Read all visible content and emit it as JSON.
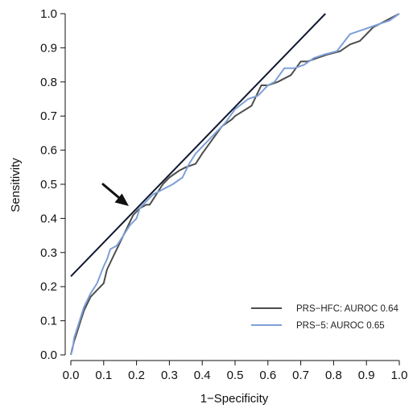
{
  "chart_data": {
    "type": "line",
    "xlabel": "1−Specificity",
    "ylabel": "Sensitivity",
    "xlim": [
      0.0,
      1.0
    ],
    "ylim": [
      0.0,
      1.0
    ],
    "x_ticks": [
      "0.0",
      "0.1",
      "0.2",
      "0.3",
      "0.4",
      "0.5",
      "0.6",
      "0.7",
      "0.8",
      "0.9",
      "1.0"
    ],
    "y_ticks": [
      "0.0",
      "0.1",
      "0.2",
      "0.3",
      "0.4",
      "0.5",
      "0.6",
      "0.7",
      "0.8",
      "0.9",
      "1.0"
    ],
    "grid": false,
    "legend_position": "bottom-right",
    "series": [
      {
        "name": "PRS−HFC: AUROC 0.64",
        "color": "#4d4d4d",
        "points": [
          [
            0.0,
            0.0
          ],
          [
            0.005,
            0.02
          ],
          [
            0.01,
            0.04
          ],
          [
            0.02,
            0.07
          ],
          [
            0.03,
            0.1
          ],
          [
            0.04,
            0.13
          ],
          [
            0.05,
            0.15
          ],
          [
            0.06,
            0.17
          ],
          [
            0.08,
            0.19
          ],
          [
            0.1,
            0.21
          ],
          [
            0.11,
            0.25
          ],
          [
            0.13,
            0.29
          ],
          [
            0.15,
            0.33
          ],
          [
            0.17,
            0.37
          ],
          [
            0.19,
            0.41
          ],
          [
            0.21,
            0.43
          ],
          [
            0.23,
            0.44
          ],
          [
            0.24,
            0.44
          ],
          [
            0.26,
            0.47
          ],
          [
            0.28,
            0.5
          ],
          [
            0.3,
            0.52
          ],
          [
            0.33,
            0.54
          ],
          [
            0.35,
            0.55
          ],
          [
            0.38,
            0.56
          ],
          [
            0.4,
            0.59
          ],
          [
            0.43,
            0.63
          ],
          [
            0.46,
            0.67
          ],
          [
            0.49,
            0.69
          ],
          [
            0.5,
            0.7
          ],
          [
            0.55,
            0.73
          ],
          [
            0.58,
            0.79
          ],
          [
            0.6,
            0.79
          ],
          [
            0.63,
            0.8
          ],
          [
            0.67,
            0.82
          ],
          [
            0.7,
            0.86
          ],
          [
            0.72,
            0.86
          ],
          [
            0.75,
            0.87
          ],
          [
            0.78,
            0.88
          ],
          [
            0.82,
            0.89
          ],
          [
            0.85,
            0.91
          ],
          [
            0.88,
            0.92
          ],
          [
            0.92,
            0.96
          ],
          [
            0.96,
            0.98
          ],
          [
            1.0,
            1.0
          ]
        ]
      },
      {
        "name": "PRS−5: AUROC 0.65",
        "color": "#7f9fd6",
        "points": [
          [
            0.0,
            0.0
          ],
          [
            0.005,
            0.015
          ],
          [
            0.01,
            0.05
          ],
          [
            0.02,
            0.08
          ],
          [
            0.03,
            0.11
          ],
          [
            0.04,
            0.14
          ],
          [
            0.05,
            0.16
          ],
          [
            0.06,
            0.18
          ],
          [
            0.08,
            0.21
          ],
          [
            0.1,
            0.26
          ],
          [
            0.11,
            0.28
          ],
          [
            0.12,
            0.31
          ],
          [
            0.14,
            0.32
          ],
          [
            0.16,
            0.35
          ],
          [
            0.18,
            0.38
          ],
          [
            0.2,
            0.4
          ],
          [
            0.21,
            0.43
          ],
          [
            0.23,
            0.45
          ],
          [
            0.25,
            0.47
          ],
          [
            0.27,
            0.48
          ],
          [
            0.29,
            0.49
          ],
          [
            0.31,
            0.5
          ],
          [
            0.34,
            0.52
          ],
          [
            0.36,
            0.56
          ],
          [
            0.38,
            0.59
          ],
          [
            0.41,
            0.62
          ],
          [
            0.44,
            0.65
          ],
          [
            0.47,
            0.68
          ],
          [
            0.5,
            0.72
          ],
          [
            0.54,
            0.75
          ],
          [
            0.57,
            0.76
          ],
          [
            0.6,
            0.79
          ],
          [
            0.62,
            0.8
          ],
          [
            0.65,
            0.84
          ],
          [
            0.68,
            0.84
          ],
          [
            0.71,
            0.85
          ],
          [
            0.74,
            0.87
          ],
          [
            0.77,
            0.88
          ],
          [
            0.81,
            0.89
          ],
          [
            0.85,
            0.94
          ],
          [
            0.88,
            0.95
          ],
          [
            0.91,
            0.96
          ],
          [
            0.94,
            0.97
          ],
          [
            0.97,
            0.98
          ],
          [
            1.0,
            1.0
          ]
        ]
      }
    ],
    "reference_line": {
      "color": "#101830",
      "from": [
        0.0,
        0.23
      ],
      "to": [
        0.775,
        1.0
      ]
    }
  }
}
